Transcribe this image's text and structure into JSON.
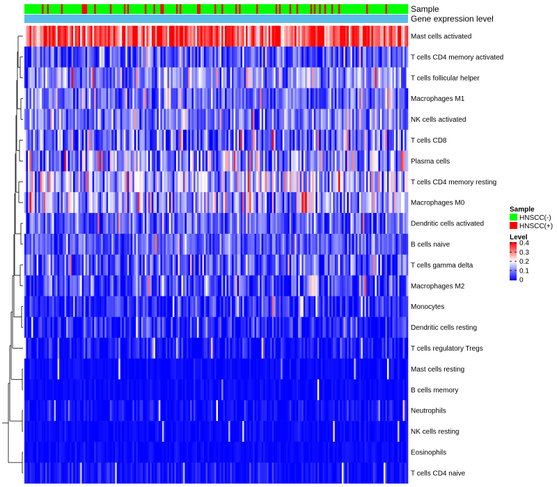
{
  "chart_data": {
    "type": "heatmap",
    "annotation_labels": [
      "Sample",
      "Gene expression level"
    ],
    "rows": [
      {
        "label": "Mast cells activated",
        "mean": 0.33,
        "spread": 0.07,
        "bright": 0.12
      },
      {
        "label": "T cells CD4 memory activated",
        "mean": 0.06,
        "spread": 0.05,
        "bright": 0.06
      },
      {
        "label": "T cells follicular helper",
        "mean": 0.11,
        "spread": 0.05,
        "bright": 0.08
      },
      {
        "label": "Macrophages M1",
        "mean": 0.08,
        "spread": 0.05,
        "bright": 0.06
      },
      {
        "label": "NK cells activated",
        "mean": 0.09,
        "spread": 0.05,
        "bright": 0.06
      },
      {
        "label": "T cells CD8",
        "mean": 0.07,
        "spread": 0.07,
        "bright": 0.08
      },
      {
        "label": "Plasma cells",
        "mean": 0.1,
        "spread": 0.07,
        "bright": 0.12
      },
      {
        "label": "T cells CD4 memory resting",
        "mean": 0.13,
        "spread": 0.07,
        "bright": 0.1
      },
      {
        "label": "Macrophages M0",
        "mean": 0.12,
        "spread": 0.08,
        "bright": 0.1
      },
      {
        "label": "Dendritic cells activated",
        "mean": 0.07,
        "spread": 0.05,
        "bright": 0.05
      },
      {
        "label": "B cells naive",
        "mean": 0.07,
        "spread": 0.04,
        "bright": 0.04
      },
      {
        "label": "T cells gamma delta",
        "mean": 0.06,
        "spread": 0.06,
        "bright": 0.08
      },
      {
        "label": "Macrophages M2",
        "mean": 0.05,
        "spread": 0.05,
        "bright": 0.06
      },
      {
        "label": "Monocytes",
        "mean": 0.04,
        "spread": 0.04,
        "bright": 0.04
      },
      {
        "label": "Dendritic cells resting",
        "mean": 0.03,
        "spread": 0.04,
        "bright": 0.04
      },
      {
        "label": "T cells regulatory  Tregs",
        "mean": 0.02,
        "spread": 0.03,
        "bright": 0.03
      },
      {
        "label": "Mast cells resting",
        "mean": 0.005,
        "spread": 0.01,
        "bright": 0.02
      },
      {
        "label": "B cells memory",
        "mean": 0.005,
        "spread": 0.01,
        "bright": 0.015
      },
      {
        "label": "Neutrophils",
        "mean": 0.01,
        "spread": 0.02,
        "bright": 0.02
      },
      {
        "label": "NK cells resting",
        "mean": 0.005,
        "spread": 0.01,
        "bright": 0.015
      },
      {
        "label": "Eosinophils",
        "mean": 0.005,
        "spread": 0.01,
        "bright": 0.01
      },
      {
        "label": "T cells CD4 naive",
        "mean": 0.01,
        "spread": 0.02,
        "bright": 0.03
      }
    ],
    "columns_count": 220,
    "sample_positive_fraction": 0.18,
    "legend_sample": {
      "title": "Sample",
      "items": [
        {
          "label": "HNSCC(-)",
          "color": "#00ff00"
        },
        {
          "label": "HNSCC(+)",
          "color": "#ff0000"
        }
      ]
    },
    "legend_level": {
      "title": "Level",
      "ticks": [
        {
          "label": "0.4",
          "value": 0.4
        },
        {
          "label": "0.3",
          "value": 0.3
        },
        {
          "label": "0.2",
          "value": 0.2
        },
        {
          "label": "0.1",
          "value": 0.1
        },
        {
          "label": "0",
          "value": 0
        }
      ],
      "range": [
        0,
        0.4
      ],
      "colors": [
        "#0000ff",
        "#ffffff",
        "#ff0000"
      ]
    },
    "expression_bar_color": "#5bbcea"
  }
}
